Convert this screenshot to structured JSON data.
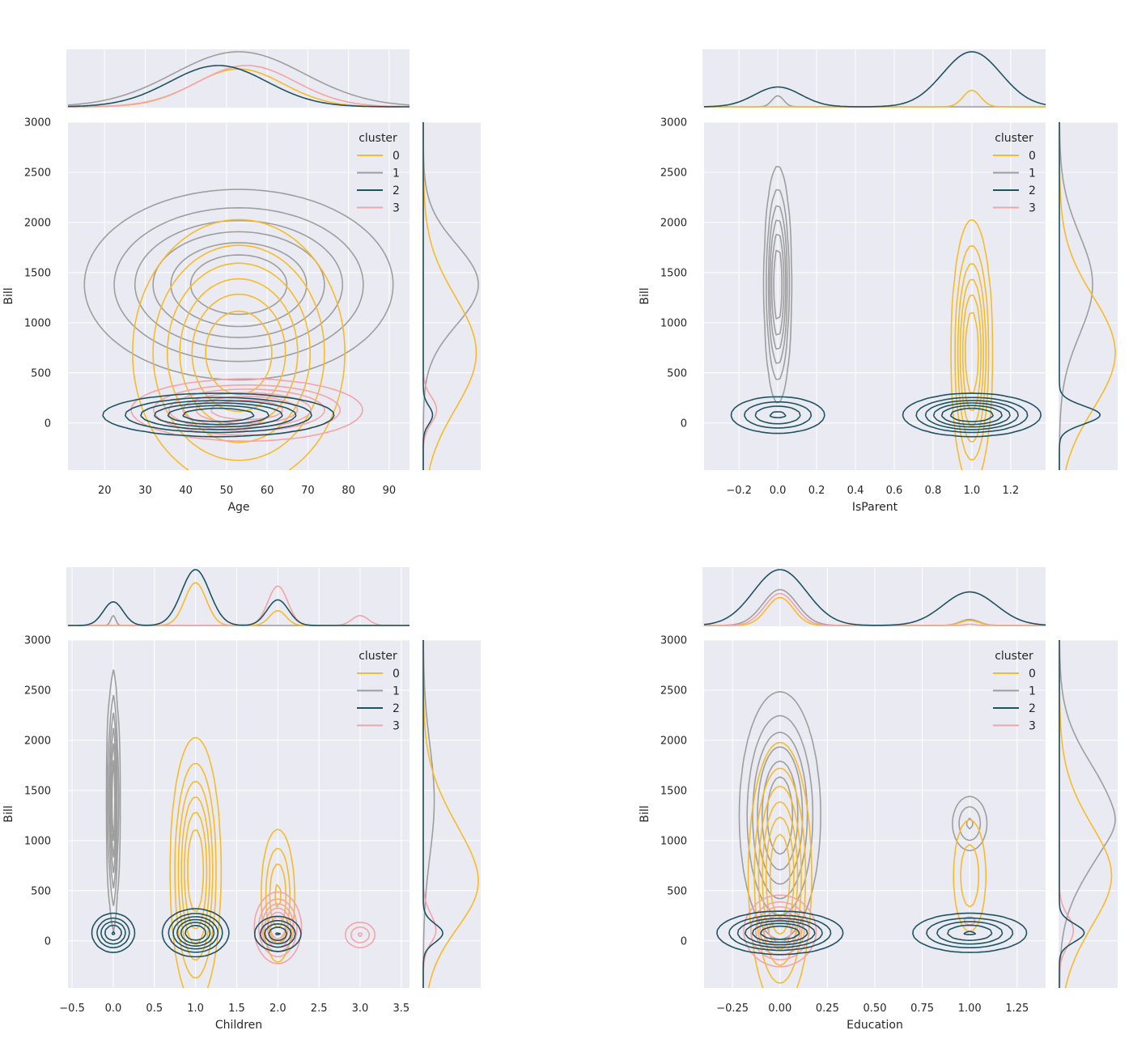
{
  "chart_data": [
    {
      "type": "kde-jointplot",
      "xlabel": "Age",
      "ylabel": "Bill",
      "xlim": [
        11,
        95
      ],
      "ylim": [
        -470,
        3000
      ],
      "xticks": [
        20,
        30,
        40,
        50,
        60,
        70,
        80,
        90
      ],
      "xtick_labels": [
        "20",
        "30",
        "40",
        "50",
        "60",
        "70",
        "80",
        "90"
      ],
      "yticks": [
        0,
        500,
        1000,
        1500,
        2000,
        2500,
        3000
      ],
      "ytick_labels": [
        "0",
        "500",
        "1000",
        "1500",
        "2000",
        "2500",
        "3000"
      ],
      "legend": {
        "title": "cluster",
        "labels": [
          "0",
          "1",
          "2",
          "3"
        ],
        "location": "top-right"
      },
      "series": [
        {
          "name": "0",
          "peaks": [
            {
              "x": 53,
              "y": 700,
              "sx": 11,
              "sy": 560,
              "w": 1.0
            }
          ]
        },
        {
          "name": "1",
          "peaks": [
            {
              "x": 53,
              "y": 1380,
              "sx": 16,
              "sy": 400,
              "w": 1.0
            }
          ]
        },
        {
          "name": "2",
          "peaks": [
            {
              "x": 48,
              "y": 80,
              "sx": 12,
              "sy": 90,
              "w": 1.0
            }
          ]
        },
        {
          "name": "3",
          "peaks": [
            {
              "x": 55,
              "y": 130,
              "sx": 12,
              "sy": 130,
              "w": 1.0
            }
          ]
        }
      ]
    },
    {
      "type": "kde-jointplot",
      "xlabel": "IsParent",
      "ylabel": "Bill",
      "xlim": [
        -0.38,
        1.38
      ],
      "ylim": [
        -470,
        3000
      ],
      "xticks": [
        -0.2,
        0.0,
        0.2,
        0.4,
        0.6,
        0.8,
        1.0,
        1.2
      ],
      "xtick_labels": [
        "−0.2",
        "0.0",
        "0.2",
        "0.4",
        "0.6",
        "0.8",
        "1.0",
        "1.2"
      ],
      "yticks": [
        0,
        500,
        1000,
        1500,
        2000,
        2500,
        3000
      ],
      "ytick_labels": [
        "0",
        "500",
        "1000",
        "1500",
        "2000",
        "2500",
        "3000"
      ],
      "legend": {
        "title": "cluster",
        "labels": [
          "0",
          "1",
          "2",
          "3"
        ],
        "location": "top-right"
      },
      "series": [
        {
          "name": "0",
          "peaks": [
            {
              "x": 1.0,
              "y": 700,
              "sx": 0.045,
              "sy": 560,
              "w": 1.0
            }
          ]
        },
        {
          "name": "1",
          "peaks": [
            {
              "x": 0.0,
              "y": 1380,
              "sx": 0.03,
              "sy": 500,
              "w": 1.0
            }
          ]
        },
        {
          "name": "2",
          "peaks": [
            {
              "x": 0.0,
              "y": 80,
              "sx": 0.12,
              "sy": 90,
              "w": 0.45
            },
            {
              "x": 1.0,
              "y": 80,
              "sx": 0.15,
              "sy": 90,
              "w": 1.0
            }
          ]
        },
        {
          "name": "3",
          "peaks": []
        }
      ]
    },
    {
      "type": "kde-jointplot",
      "xlabel": "Children",
      "ylabel": "Bill",
      "xlim": [
        -0.55,
        3.6
      ],
      "ylim": [
        -470,
        3000
      ],
      "xticks": [
        -0.5,
        0.0,
        0.5,
        1.0,
        1.5,
        2.0,
        2.5,
        3.0,
        3.5
      ],
      "xtick_labels": [
        "−0.5",
        "0.0",
        "0.5",
        "1.0",
        "1.5",
        "2.0",
        "2.5",
        "3.0",
        "3.5"
      ],
      "yticks": [
        0,
        500,
        1000,
        1500,
        2000,
        2500,
        3000
      ],
      "ytick_labels": [
        "0",
        "500",
        "1000",
        "1500",
        "2000",
        "2500",
        "3000"
      ],
      "legend": {
        "title": "cluster",
        "labels": [
          "0",
          "1",
          "2",
          "3"
        ],
        "location": "top-right"
      },
      "series": [
        {
          "name": "0",
          "peaks": [
            {
              "x": 1.0,
              "y": 700,
              "sx": 0.13,
              "sy": 560,
              "w": 1.0
            },
            {
              "x": 2.0,
              "y": 450,
              "sx": 0.1,
              "sy": 330,
              "w": 0.45
            }
          ]
        },
        {
          "name": "1",
          "peaks": [
            {
              "x": 0.0,
              "y": 1400,
              "sx": 0.03,
              "sy": 550,
              "w": 1.0
            }
          ]
        },
        {
          "name": "2",
          "peaks": [
            {
              "x": 0.0,
              "y": 80,
              "sx": 0.12,
              "sy": 90,
              "w": 0.6
            },
            {
              "x": 1.0,
              "y": 80,
              "sx": 0.17,
              "sy": 100,
              "w": 1.0
            },
            {
              "x": 2.0,
              "y": 70,
              "sx": 0.13,
              "sy": 80,
              "w": 0.6
            }
          ]
        },
        {
          "name": "3",
          "peaks": [
            {
              "x": 2.0,
              "y": 130,
              "sx": 0.12,
              "sy": 150,
              "w": 1.0
            },
            {
              "x": 3.0,
              "y": 60,
              "sx": 0.1,
              "sy": 70,
              "w": 0.3
            }
          ]
        }
      ]
    },
    {
      "type": "kde-jointplot",
      "xlabel": "Education",
      "ylabel": "Bill",
      "xlim": [
        -0.4,
        1.4
      ],
      "ylim": [
        -470,
        3000
      ],
      "xticks": [
        -0.25,
        0.0,
        0.25,
        0.5,
        0.75,
        1.0,
        1.25
      ],
      "xtick_labels": [
        "−0.25",
        "0.00",
        "0.25",
        "0.50",
        "0.75",
        "1.00",
        "1.25"
      ],
      "yticks": [
        0,
        500,
        1000,
        1500,
        2000,
        2500,
        3000
      ],
      "ytick_labels": [
        "0",
        "500",
        "1000",
        "1500",
        "2000",
        "2500",
        "3000"
      ],
      "legend": {
        "title": "cluster",
        "labels": [
          "0",
          "1",
          "2",
          "3"
        ],
        "location": "top-right"
      },
      "series": [
        {
          "name": "0",
          "peaks": [
            {
              "x": 0.0,
              "y": 650,
              "sx": 0.07,
              "sy": 560,
              "w": 1.0
            },
            {
              "x": 1.0,
              "y": 650,
              "sx": 0.05,
              "sy": 330,
              "w": 0.25
            }
          ]
        },
        {
          "name": "1",
          "peaks": [
            {
              "x": 0.0,
              "y": 1250,
              "sx": 0.09,
              "sy": 520,
              "w": 1.0
            },
            {
              "x": 1.0,
              "y": 1170,
              "sx": 0.05,
              "sy": 150,
              "w": 0.3
            }
          ]
        },
        {
          "name": "2",
          "peaks": [
            {
              "x": 0.0,
              "y": 80,
              "sx": 0.14,
              "sy": 90,
              "w": 1.0
            },
            {
              "x": 1.0,
              "y": 80,
              "sx": 0.14,
              "sy": 90,
              "w": 0.6
            }
          ]
        },
        {
          "name": "3",
          "peaks": [
            {
              "x": 0.0,
              "y": 100,
              "sx": 0.08,
              "sy": 150,
              "w": 1.0
            },
            {
              "x": 1.0,
              "y": 200,
              "sx": 0.03,
              "sy": 40,
              "w": 0.1
            }
          ]
        }
      ]
    }
  ],
  "palette": {
    "0": "#f7bb2a",
    "1": "#9e9e9e",
    "2": "#1e5361",
    "3": "#f4a3a8"
  },
  "colors": {
    "panel_bg": "#eaeaf2",
    "grid": "#ffffff",
    "text": "#262626"
  }
}
